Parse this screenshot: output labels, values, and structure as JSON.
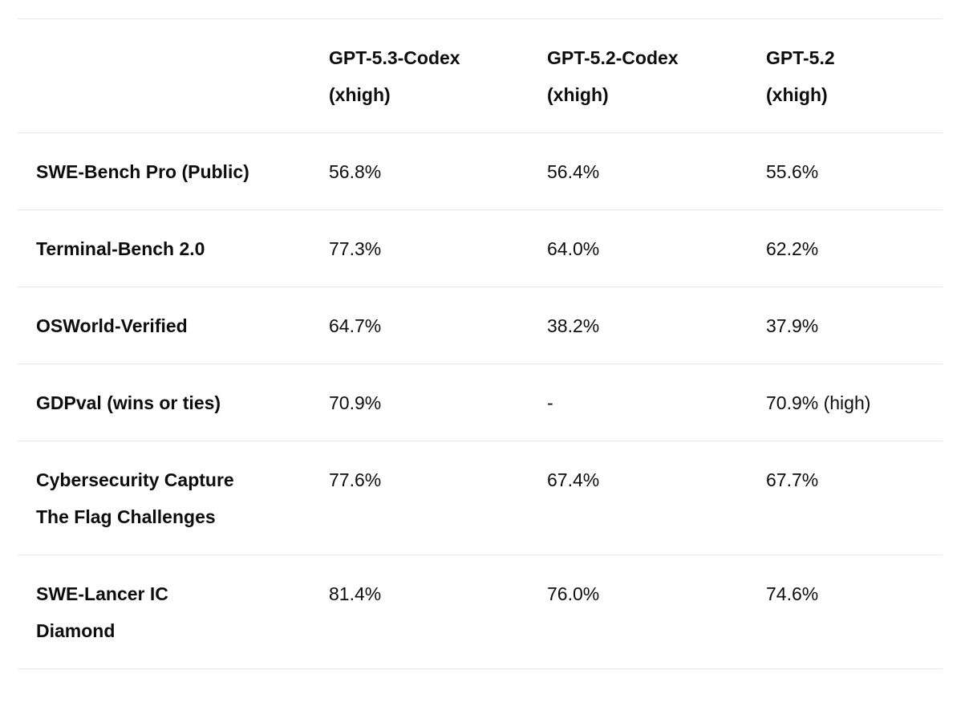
{
  "chart_data": {
    "type": "table",
    "columns": [
      {
        "label": "GPT-5.3-Codex (xhigh)",
        "lines": [
          "GPT-5.3-Codex",
          "(xhigh)"
        ]
      },
      {
        "label": "GPT-5.2-Codex (xhigh)",
        "lines": [
          "GPT-5.2-Codex",
          "(xhigh)"
        ]
      },
      {
        "label": "GPT-5.2 (xhigh)",
        "lines": [
          "GPT-5.2",
          "(xhigh)"
        ]
      }
    ],
    "rows": [
      {
        "benchmark": "SWE-Bench Pro (Public)",
        "label_lines": [
          "SWE-Bench Pro (Public)"
        ],
        "values": [
          "56.8%",
          "56.4%",
          "55.6%"
        ]
      },
      {
        "benchmark": "Terminal-Bench 2.0",
        "label_lines": [
          "Terminal-Bench 2.0"
        ],
        "values": [
          "77.3%",
          "64.0%",
          "62.2%"
        ]
      },
      {
        "benchmark": "OSWorld-Verified",
        "label_lines": [
          "OSWorld-Verified"
        ],
        "values": [
          "64.7%",
          "38.2%",
          "37.9%"
        ]
      },
      {
        "benchmark": "GDPval (wins or ties)",
        "label_lines": [
          "GDPval (wins or ties)"
        ],
        "values": [
          "70.9%",
          "-",
          "70.9% (high)"
        ]
      },
      {
        "benchmark": "Cybersecurity Capture The Flag Challenges",
        "label_lines": [
          "Cybersecurity Capture",
          "The Flag Challenges"
        ],
        "values": [
          "77.6%",
          "67.4%",
          "67.7%"
        ]
      },
      {
        "benchmark": "SWE-Lancer IC Diamond",
        "label_lines": [
          "SWE-Lancer IC",
          "Diamond"
        ],
        "values": [
          "81.4%",
          "76.0%",
          "74.6%"
        ]
      }
    ],
    "colors": {
      "text": "#0d0d0d",
      "divider": "#e8e8e8",
      "background": "#ffffff"
    }
  }
}
